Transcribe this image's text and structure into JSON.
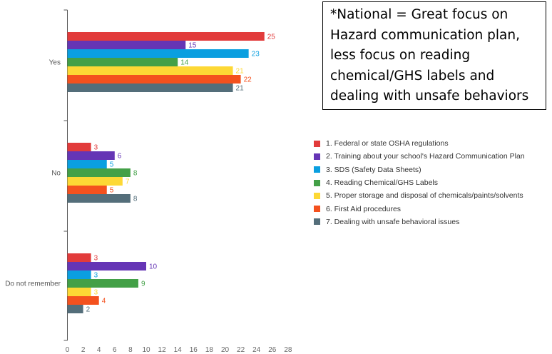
{
  "chart_data": {
    "type": "bar",
    "orientation": "horizontal",
    "categories": [
      "Yes",
      "No",
      "Do not remember"
    ],
    "series": [
      {
        "name": "1. Federal or state OSHA regulations",
        "color": "#e23b3b",
        "values": [
          25,
          3,
          3
        ]
      },
      {
        "name": "2. Training about your school's Hazard Communication Plan",
        "color": "#6535b5",
        "values": [
          15,
          6,
          10
        ]
      },
      {
        "name": "3. SDS (Safety Data Sheets)",
        "color": "#0a9fe0",
        "values": [
          23,
          5,
          3
        ]
      },
      {
        "name": "4. Reading Chemical/GHS Labels",
        "color": "#43a047",
        "values": [
          14,
          8,
          9
        ]
      },
      {
        "name": "5. Proper storage and disposal of chemicals/paints/solvents",
        "color": "#fdd835",
        "values": [
          21,
          7,
          3
        ]
      },
      {
        "name": "6. First Aid procedures",
        "color": "#f4511e",
        "values": [
          22,
          5,
          4
        ]
      },
      {
        "name": "7. Dealing with unsafe behavioral issues",
        "color": "#546e7a",
        "values": [
          21,
          8,
          2
        ]
      }
    ],
    "x_ticks": [
      "0",
      "2",
      "4",
      "6",
      "8",
      "10",
      "12",
      "14",
      "16",
      "18",
      "20",
      "22",
      "24",
      "26",
      "28"
    ],
    "xlim": [
      0,
      28
    ],
    "grid": false,
    "legend_position": "right"
  },
  "annotation": {
    "lines": [
      "*National = Great focus on",
      "Hazard communication plan,",
      "less focus on reading",
      "chemical/GHS labels and",
      "dealing with unsafe behaviors"
    ]
  }
}
